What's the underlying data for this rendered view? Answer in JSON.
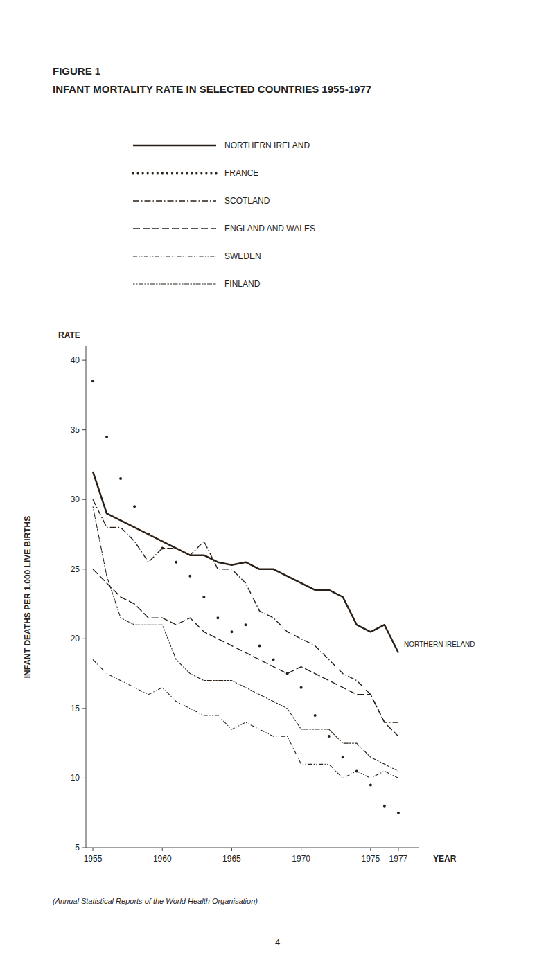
{
  "chart_data": {
    "type": "line",
    "title": "FIGURE 1",
    "subtitle": "INFANT MORTALITY RATE IN SELECTED COUNTRIES 1955-1977",
    "x_label": "YEAR",
    "y_label": "INFANT DEATHS PER 1,000 LIVE BIRTHS",
    "annotations": [
      "RATE",
      "NORTHERN IRELAND",
      "(Annual Statistical Reports of the World Health Organisation)",
      "4"
    ],
    "x": [
      1955,
      1956,
      1957,
      1958,
      1959,
      1960,
      1961,
      1962,
      1963,
      1964,
      1965,
      1966,
      1967,
      1968,
      1969,
      1970,
      1971,
      1972,
      1973,
      1974,
      1975,
      1976,
      1977
    ],
    "xlim": [
      1954.5,
      1978.5
    ],
    "xticks": [
      1955,
      1960,
      1965,
      1970,
      1975,
      1977
    ],
    "ylim": [
      5,
      41
    ],
    "yticks": [
      5,
      10,
      15,
      20,
      25,
      30,
      35,
      40
    ],
    "grid": false,
    "legend": "top",
    "series": [
      {
        "name": "NORTHERN IRELAND",
        "color": "#2a2018",
        "line_style": "solid",
        "values": [
          32.0,
          29.0,
          28.5,
          28.0,
          27.5,
          27.0,
          26.5,
          26.0,
          26.0,
          25.5,
          25.3,
          25.5,
          25.0,
          25.0,
          24.5,
          24.0,
          23.5,
          23.5,
          23.0,
          21.0,
          20.5,
          21.0,
          19.0
        ]
      },
      {
        "name": "FRANCE",
        "color": "#2a2018",
        "line_style": "none",
        "marker": "dot",
        "values": [
          38.5,
          34.5,
          31.5,
          29.5,
          27.5,
          26.5,
          25.5,
          24.5,
          23.0,
          21.5,
          20.5,
          21.0,
          19.5,
          18.5,
          17.5,
          16.5,
          14.5,
          13.0,
          11.5,
          10.5,
          9.5,
          8.0,
          7.5
        ]
      },
      {
        "name": "SCOTLAND",
        "color": "#2a2018",
        "line_style": "dashdot",
        "values": [
          30.0,
          28.0,
          28.0,
          27.0,
          25.5,
          26.5,
          26.5,
          26.0,
          27.0,
          25.0,
          25.0,
          24.0,
          22.0,
          21.5,
          20.5,
          20.0,
          19.5,
          18.5,
          17.5,
          17.0,
          16.0,
          14.0,
          14.0
        ]
      },
      {
        "name": "ENGLAND AND WALES",
        "color": "#2a2018",
        "line_style": "longdash",
        "values": [
          25.0,
          24.0,
          23.0,
          22.5,
          21.5,
          21.5,
          21.0,
          21.5,
          20.5,
          20.0,
          19.5,
          19.0,
          18.5,
          18.0,
          17.5,
          18.0,
          17.5,
          17.0,
          16.5,
          16.0,
          16.0,
          14.0,
          13.0
        ]
      },
      {
        "name": "SWEDEN",
        "color": "#2a2018",
        "line_style": "dashdotdot",
        "values": [
          18.5,
          17.5,
          17.0,
          16.5,
          16.0,
          16.5,
          15.5,
          15.0,
          14.5,
          14.5,
          13.5,
          14.0,
          13.5,
          13.0,
          13.0,
          11.0,
          11.0,
          11.0,
          10.0,
          10.5,
          10.0,
          10.5,
          10.0
        ]
      },
      {
        "name": "FINLAND",
        "color": "#2a2018",
        "line_style": "dashdashlong",
        "values": [
          29.5,
          24.5,
          21.5,
          21.0,
          21.0,
          21.0,
          18.5,
          17.5,
          17.0,
          17.0,
          17.0,
          16.5,
          16.0,
          15.5,
          15.0,
          13.5,
          13.5,
          13.5,
          12.5,
          12.5,
          11.5,
          11.0,
          10.5
        ]
      }
    ]
  }
}
